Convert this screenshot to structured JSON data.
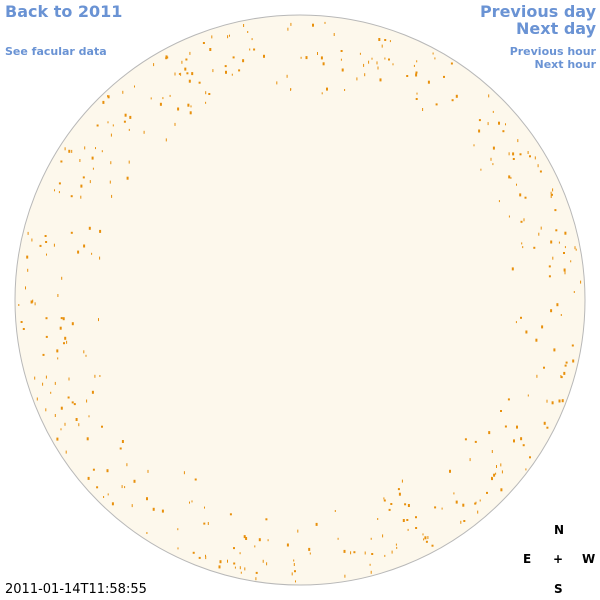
{
  "nav": {
    "back": "Back to 2011",
    "facular": "See facular data",
    "previous_day": "Previous day",
    "next_day": "Next day",
    "previous_hour": "Previous hour",
    "next_hour": "Next hour"
  },
  "timestamp": "2011-01-14T11:58:55",
  "compass": {
    "north": "N",
    "east": "E",
    "center": "+",
    "west": "W",
    "south": "S"
  }
}
